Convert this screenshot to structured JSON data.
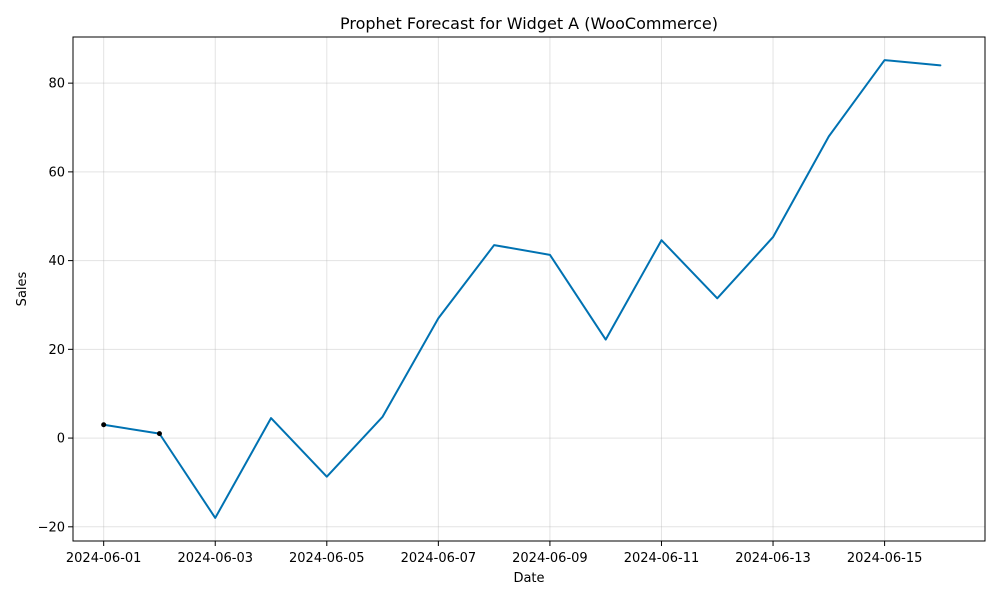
{
  "chart_data": {
    "type": "line",
    "title": "Prophet Forecast for Widget A (WooCommerce)",
    "xlabel": "Date",
    "ylabel": "Sales",
    "x": [
      "2024-06-01",
      "2024-06-02",
      "2024-06-03",
      "2024-06-04",
      "2024-06-05",
      "2024-06-06",
      "2024-06-07",
      "2024-06-08",
      "2024-06-09",
      "2024-06-10",
      "2024-06-11",
      "2024-06-12",
      "2024-06-13",
      "2024-06-14",
      "2024-06-15",
      "2024-06-16"
    ],
    "series": [
      {
        "values": [
          3.0,
          1.0,
          -18.0,
          4.5,
          -8.7,
          4.8,
          27.0,
          43.5,
          41.3,
          22.2,
          44.6,
          31.5,
          45.3,
          68.0,
          85.2,
          84.0
        ],
        "color": "#0072b2"
      }
    ],
    "observed": {
      "x": [
        "2024-06-01",
        "2024-06-02"
      ],
      "values": [
        3.0,
        1.0
      ],
      "color": "#000000"
    },
    "xticks": [
      "2024-06-01",
      "2024-06-03",
      "2024-06-05",
      "2024-06-07",
      "2024-06-09",
      "2024-06-11",
      "2024-06-13",
      "2024-06-15"
    ],
    "yticks": [
      -20,
      0,
      20,
      40,
      60,
      80
    ],
    "xlim": [
      "2024-05-31T10:48",
      "2024-06-16T19:12"
    ],
    "ylim": [
      -23.2,
      90.4
    ],
    "grid": true
  }
}
